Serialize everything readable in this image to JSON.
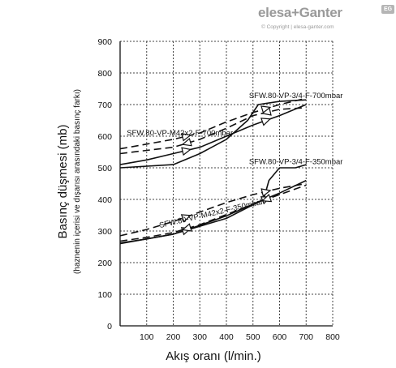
{
  "branding": {
    "name": "elesa+Ganter",
    "badge": "EG",
    "copyright": "© Copyright | elesa-ganter.com"
  },
  "chart_data": {
    "type": "line",
    "title": "",
    "xlabel": "Akış oranı (l/min.)",
    "ylabel": "Basınç düşmesi (mb)",
    "ylabel_sub": "(haznenin içerisi ve dışarısı arasındaki basınç farkı)",
    "xlim": [
      0,
      800
    ],
    "ylim": [
      0,
      900
    ],
    "x_ticks": [
      "100",
      "200",
      "300",
      "400",
      "500",
      "600",
      "700",
      "800"
    ],
    "y_ticks": [
      "0",
      "100",
      "200",
      "300",
      "400",
      "500",
      "600",
      "700",
      "800",
      "900"
    ],
    "grid": true,
    "annotations": [
      {
        "text": "SFW.80-VP-3/4-F-700mbar",
        "x": 485,
        "y": 720
      },
      {
        "text": "SFW.80-VP-M42x2-F-700mbar",
        "x": 25,
        "y": 602
      },
      {
        "text": "SFW.80-VP-3/4-F-350mbar",
        "x": 485,
        "y": 512
      },
      {
        "text": "SFW.80-VP-M42x2-F-350mbar",
        "x": 150,
        "y": 310
      }
    ],
    "series": [
      {
        "style": "solid",
        "arrows": "none",
        "x": [
          0,
          200,
          300,
          400,
          480,
          520,
          600,
          700
        ],
        "y": [
          500,
          510,
          545,
          590,
          650,
          700,
          710,
          715
        ]
      },
      {
        "style": "solid",
        "arrows": "forward",
        "x": [
          0,
          100,
          200,
          300,
          400,
          500,
          600,
          700
        ],
        "y": [
          510,
          525,
          545,
          565,
          600,
          635,
          665,
          700
        ]
      },
      {
        "style": "dashed",
        "arrows": "forward",
        "x": [
          0,
          100,
          200,
          300,
          400,
          500,
          600,
          700
        ],
        "y": [
          560,
          575,
          590,
          610,
          645,
          675,
          700,
          720
        ]
      },
      {
        "style": "dashed",
        "arrows": "backward",
        "x": [
          0,
          100,
          200,
          300,
          400,
          500,
          600,
          700
        ],
        "y": [
          545,
          555,
          565,
          590,
          625,
          665,
          685,
          690
        ]
      },
      {
        "style": "solid",
        "arrows": "none",
        "x": [
          0,
          200,
          400,
          540,
          560,
          600,
          660,
          700
        ],
        "y": [
          260,
          290,
          340,
          400,
          460,
          500,
          500,
          510
        ]
      },
      {
        "style": "solid",
        "arrows": "forward",
        "x": [
          0,
          100,
          200,
          300,
          400,
          500,
          600,
          700
        ],
        "y": [
          262,
          275,
          290,
          318,
          348,
          385,
          420,
          460
        ]
      },
      {
        "style": "dashed",
        "arrows": "forward",
        "x": [
          0,
          100,
          200,
          300,
          400,
          500,
          600,
          700
        ],
        "y": [
          285,
          305,
          330,
          360,
          390,
          415,
          435,
          450
        ]
      },
      {
        "style": "dashed",
        "arrows": "backward",
        "x": [
          0,
          100,
          200,
          300,
          400,
          500,
          600,
          700
        ],
        "y": [
          268,
          280,
          295,
          320,
          352,
          385,
          415,
          445
        ]
      }
    ]
  }
}
